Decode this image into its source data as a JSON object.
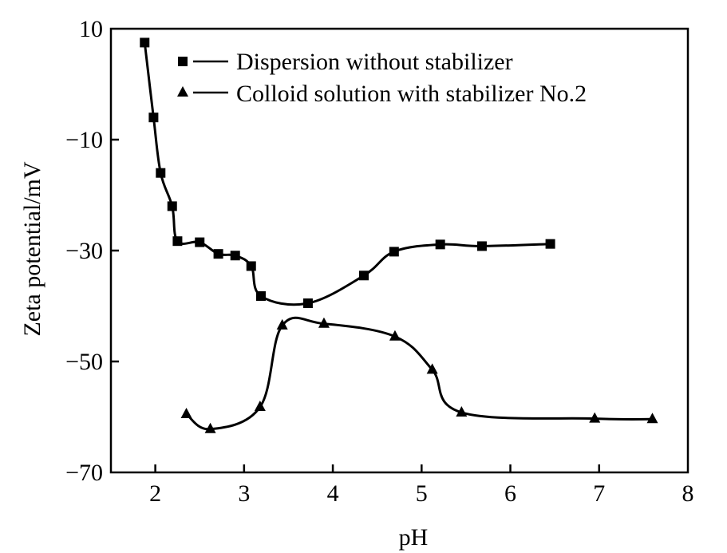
{
  "chart_data": {
    "type": "line",
    "title": "",
    "xlabel": "pH",
    "ylabel": "Zeta potential/mV",
    "xlim": [
      1.5,
      8
    ],
    "ylim": [
      -70,
      10
    ],
    "xticks": [
      2,
      3,
      4,
      5,
      6,
      7,
      8
    ],
    "yticks": [
      10,
      -10,
      -30,
      -50,
      -70
    ],
    "grid": false,
    "legend_position": "top-left",
    "series": [
      {
        "name": "Dispersion without stabilizer",
        "marker": "square",
        "x": [
          1.88,
          1.98,
          2.06,
          2.19,
          2.25,
          2.5,
          2.71,
          2.9,
          3.08,
          3.19,
          3.72,
          4.35,
          4.69,
          5.21,
          5.68,
          6.45
        ],
        "y": [
          7.5,
          -6,
          -16,
          -22,
          -28.3,
          -28.5,
          -30.6,
          -30.9,
          -32.8,
          -38.2,
          -39.5,
          -34.5,
          -30.2,
          -28.9,
          -29.2,
          -28.8
        ]
      },
      {
        "name": "Colloid solution with stabilizer No.2",
        "marker": "triangle",
        "x": [
          2.35,
          2.62,
          3.18,
          3.43,
          3.9,
          4.7,
          5.12,
          5.45,
          6.95,
          7.6
        ],
        "y": [
          -59.5,
          -62.2,
          -58.2,
          -43.5,
          -43.2,
          -45.5,
          -51.5,
          -59.2,
          -60.3,
          -60.4
        ]
      }
    ]
  }
}
